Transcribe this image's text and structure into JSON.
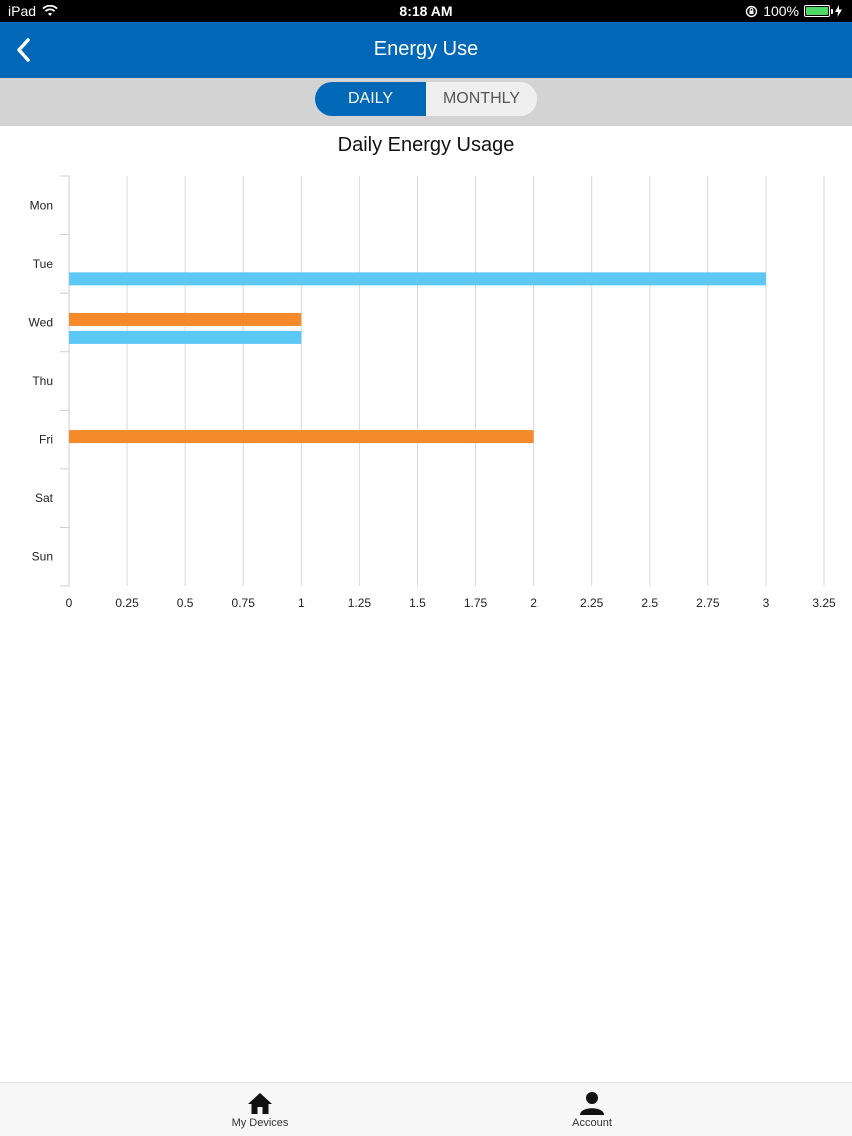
{
  "status": {
    "device": "iPad",
    "time": "8:18 AM",
    "battery": "100%"
  },
  "nav": {
    "title": "Energy Use"
  },
  "segments": {
    "daily": "DAILY",
    "monthly": "MONTHLY",
    "selected": "daily"
  },
  "colors": {
    "primary": "#0068b7",
    "series_a": "#5bc8f5",
    "series_b": "#f58a2a"
  },
  "chart_data": {
    "type": "bar",
    "orientation": "horizontal",
    "title": "Daily Energy Usage",
    "categories": [
      "Mon",
      "Tue",
      "Wed",
      "Thu",
      "Fri",
      "Sat",
      "Sun"
    ],
    "series": [
      {
        "color": "#f58a2a",
        "values": [
          0,
          0,
          1,
          0,
          2,
          0,
          0
        ]
      },
      {
        "color": "#5bc8f5",
        "values": [
          0,
          3,
          1,
          0,
          0,
          0,
          0
        ]
      }
    ],
    "xlim": [
      0,
      3.25
    ],
    "xticks": [
      "0",
      "0.25",
      "0.5",
      "0.75",
      "1",
      "1.25",
      "1.5",
      "1.75",
      "2",
      "2.25",
      "2.5",
      "2.75",
      "3",
      "3.25"
    ],
    "grid": true,
    "legend": "none"
  },
  "tabs": [
    {
      "label": "My Devices",
      "icon": "home-icon"
    },
    {
      "label": "Account",
      "icon": "person-icon"
    }
  ]
}
